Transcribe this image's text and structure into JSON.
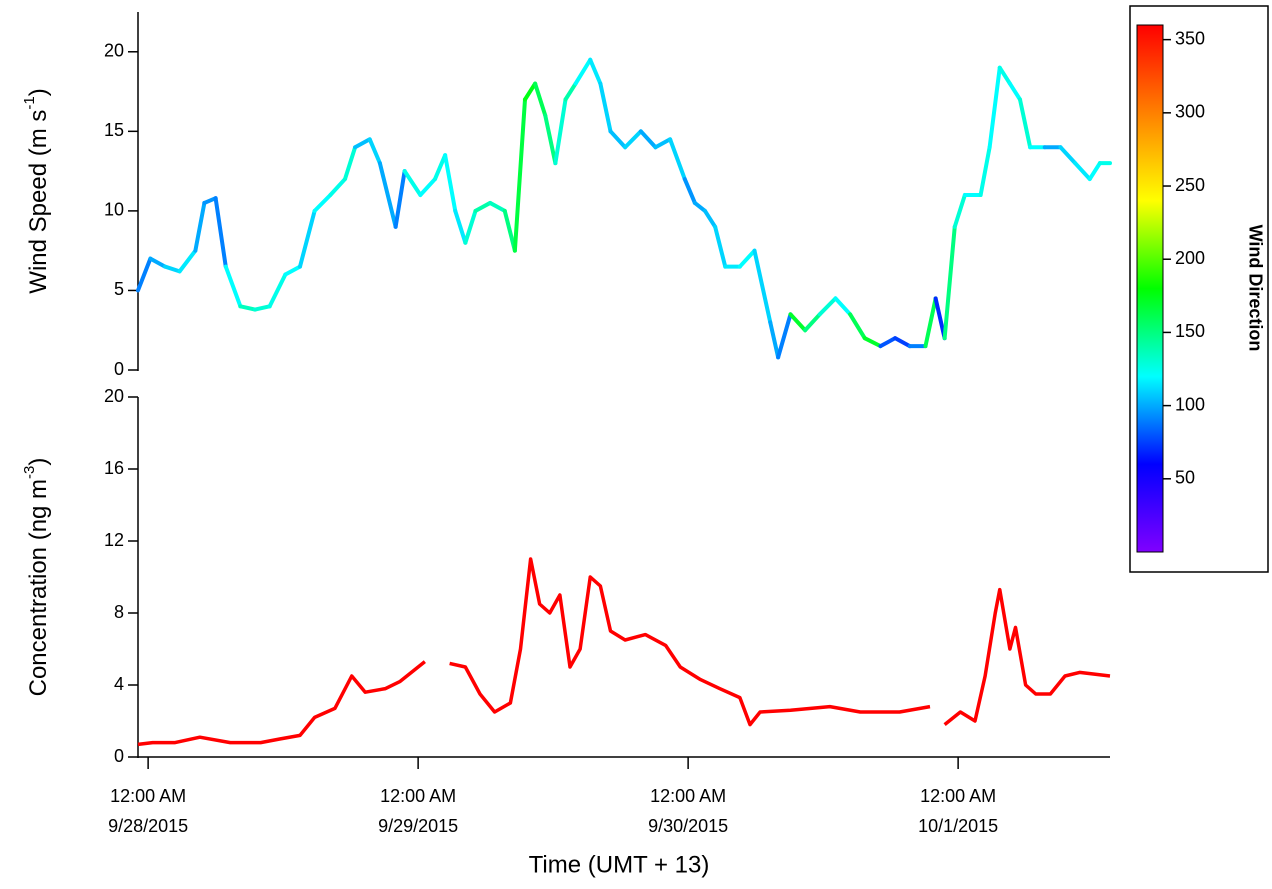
{
  "chart_data": [
    {
      "type": "colorline",
      "ylabel": [
        "Wind Speed (m s",
        "-1",
        ")"
      ],
      "xlim": [
        -0.9,
        85.5
      ],
      "ylim": [
        0,
        22.5
      ],
      "yticks": [
        0,
        5,
        10,
        15,
        20
      ],
      "x": [
        -0.9,
        0.2,
        1.5,
        2.8,
        4.2,
        5,
        6,
        6.9,
        8.2,
        9.5,
        10.8,
        12.2,
        13.5,
        14.8,
        16.2,
        17.5,
        18.4,
        19.7,
        20.6,
        22,
        22.8,
        24.2,
        25.5,
        26.4,
        27.3,
        28.2,
        29.1,
        30.4,
        31.7,
        32.6,
        33.5,
        34.4,
        35.3,
        36.2,
        37.1,
        38,
        39.3,
        40.2,
        41.1,
        42.4,
        43.8,
        45.1,
        46.4,
        47.7,
        48.6,
        49.5,
        50.4,
        51.3,
        52.6,
        53.9,
        55.3,
        56,
        57.1,
        58.4,
        59.7,
        61.1,
        62.4,
        63.7,
        65.1,
        66.4,
        67.7,
        69.1,
        70,
        70.8,
        71.7,
        72.6,
        74,
        74.8,
        75.7,
        76.6,
        77.5,
        78.4,
        79.7,
        81.1,
        82.4,
        83.7,
        84.6,
        85.5
      ],
      "values": [
        5,
        7,
        6.5,
        6.2,
        7.5,
        10.5,
        10.8,
        6.5,
        4,
        3.8,
        4,
        6,
        6.5,
        10,
        11,
        12,
        14,
        14.5,
        13,
        9,
        12.5,
        11,
        12,
        13.5,
        10,
        8,
        10,
        10.5,
        10,
        7.5,
        17,
        18,
        16,
        13,
        17,
        18,
        19.5,
        18,
        15,
        14,
        15,
        14,
        14.5,
        12,
        10.5,
        10,
        9,
        6.5,
        6.5,
        7.5,
        3,
        0.8,
        3.5,
        2.5,
        3.5,
        4.5,
        3.5,
        2,
        1.5,
        2,
        1.5,
        1.5,
        4.5,
        2,
        9,
        11,
        11,
        14,
        19,
        18,
        17,
        14,
        14,
        14,
        13,
        12,
        13,
        13
      ],
      "color_values": [
        90,
        100,
        110,
        115,
        100,
        95,
        90,
        120,
        135,
        130,
        125,
        120,
        110,
        120,
        125,
        130,
        105,
        110,
        100,
        90,
        125,
        120,
        125,
        120,
        115,
        130,
        140,
        135,
        150,
        165,
        175,
        160,
        150,
        130,
        140,
        120,
        115,
        110,
        105,
        110,
        100,
        105,
        110,
        95,
        100,
        105,
        110,
        115,
        120,
        110,
        100,
        90,
        170,
        150,
        130,
        120,
        160,
        170,
        80,
        75,
        90,
        160,
        70,
        150,
        130,
        120,
        125,
        120,
        125,
        120,
        130,
        120,
        100,
        110,
        115,
        120,
        125,
        130
      ],
      "colorbar": {
        "label": "Wind Direction",
        "zlim": [
          0,
          360
        ],
        "ticks": [
          50,
          100,
          150,
          200,
          250,
          300,
          350
        ],
        "colormap": [
          "#8000ff",
          "#0000ff",
          "#00ffff",
          "#00ff00",
          "#ffff00",
          "#ff8000",
          "#ff0000"
        ]
      }
    },
    {
      "type": "line",
      "ylabel": [
        "Concentration (ng m",
        "-3",
        ")"
      ],
      "xlabel": "Time (UMT + 13)",
      "color": "#ff0000",
      "xlim": [
        -0.9,
        85.5
      ],
      "ylim": [
        0,
        20
      ],
      "yticks": [
        0,
        4,
        8,
        12,
        16,
        20
      ],
      "xticks": [
        {
          "value": 0,
          "label": [
            "12:00 AM",
            "9/28/2015"
          ]
        },
        {
          "value": 24,
          "label": [
            "12:00 AM",
            "9/29/2015"
          ]
        },
        {
          "value": 48,
          "label": [
            "12:00 AM",
            "9/30/2015"
          ]
        },
        {
          "value": 72,
          "label": [
            "12:00 AM",
            "10/1/2015"
          ]
        }
      ],
      "x": [
        -0.9,
        0.4,
        2.4,
        4.6,
        7.3,
        10,
        11.7,
        13.5,
        14.8,
        16.6,
        18.1,
        19.3,
        21.1,
        22.4,
        24.6,
        25.5,
        26.8,
        28.2,
        29.5,
        30.8,
        32.2,
        33.1,
        34,
        34.8,
        35.7,
        36.6,
        37.5,
        38.4,
        39.3,
        40.2,
        41.1,
        42.4,
        44.2,
        46,
        47.3,
        49.1,
        50.8,
        52.6,
        53.5,
        54.4,
        57.1,
        60.6,
        63.3,
        66.8,
        69.5,
        70,
        70.8,
        72.2,
        73.5,
        74.4,
        75.3,
        75.7,
        76.6,
        77.1,
        78,
        78.9,
        80.2,
        81.5,
        82.8,
        84.2,
        85.5
      ],
      "values": [
        0.7,
        0.8,
        0.8,
        1.1,
        0.8,
        0.8,
        1,
        1.2,
        2.2,
        2.7,
        4.5,
        3.6,
        3.8,
        4.2,
        5.3,
        null,
        5.2,
        5,
        3.5,
        2.5,
        3,
        6,
        11,
        8.5,
        8,
        9,
        5,
        6,
        10,
        9.5,
        7,
        6.5,
        6.8,
        6.2,
        5,
        4.3,
        3.8,
        3.3,
        1.8,
        2.5,
        2.6,
        2.8,
        2.5,
        2.5,
        2.8,
        null,
        1.8,
        2.5,
        2,
        4.5,
        8,
        9.3,
        6,
        7.2,
        4,
        3.5,
        3.5,
        4.5,
        4.7,
        4.6,
        4.5
      ]
    }
  ]
}
